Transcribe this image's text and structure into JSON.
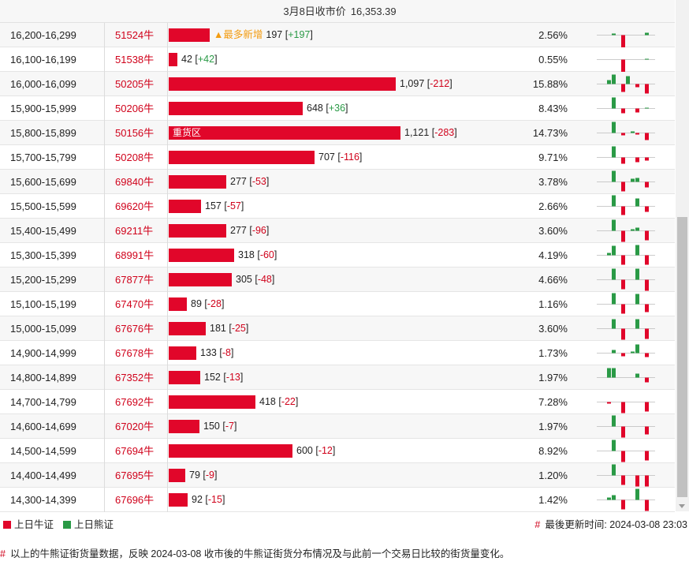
{
  "header": {
    "date_label": "3月8日收市价",
    "price": "16,353.39"
  },
  "colors": {
    "bull": "#e1062a",
    "bear": "#2a9a46",
    "code": "#d0021b"
  },
  "rows": [
    {
      "range": "16,200-16,299",
      "code": "51524牛",
      "bar_value": 197,
      "value": "197",
      "delta": "+197",
      "pct": "2.56%",
      "tag": "▲最多新增",
      "label": "",
      "spark": [
        0,
        0,
        0,
        2,
        0,
        -16,
        0,
        0,
        0,
        0,
        3,
        0
      ]
    },
    {
      "range": "16,100-16,199",
      "code": "51538牛",
      "bar_value": 42,
      "value": "42",
      "delta": "+42",
      "pct": "0.55%",
      "tag": "",
      "label": "",
      "spark": [
        0,
        0,
        0,
        0,
        0,
        -16,
        0,
        0,
        0,
        0,
        1,
        0
      ]
    },
    {
      "range": "16,000-16,099",
      "code": "50205牛",
      "bar_value": 1097,
      "value": "1,097",
      "delta": "-212",
      "pct": "15.88%",
      "tag": "",
      "label": "",
      "spark": [
        0,
        0,
        5,
        12,
        0,
        -10,
        10,
        0,
        -4,
        0,
        -12,
        0
      ]
    },
    {
      "range": "15,900-15,999",
      "code": "50206牛",
      "bar_value": 648,
      "value": "648",
      "delta": "+36",
      "pct": "8.43%",
      "tag": "",
      "label": "",
      "spark": [
        0,
        0,
        0,
        14,
        0,
        -6,
        0,
        0,
        -5,
        0,
        1,
        0
      ]
    },
    {
      "range": "15,800-15,899",
      "code": "50156牛",
      "bar_value": 1121,
      "value": "1,121",
      "delta": "-283",
      "pct": "14.73%",
      "tag": "",
      "label": "重货区",
      "spark": [
        0,
        0,
        0,
        14,
        0,
        -3,
        0,
        2,
        -2,
        0,
        -9,
        0
      ]
    },
    {
      "range": "15,700-15,799",
      "code": "50208牛",
      "bar_value": 707,
      "value": "707",
      "delta": "-116",
      "pct": "9.71%",
      "tag": "",
      "label": "",
      "spark": [
        0,
        0,
        0,
        14,
        0,
        -8,
        0,
        0,
        -6,
        0,
        -4,
        0
      ]
    },
    {
      "range": "15,600-15,699",
      "code": "69840牛",
      "bar_value": 277,
      "value": "277",
      "delta": "-53",
      "pct": "3.78%",
      "tag": "",
      "label": "",
      "spark": [
        0,
        0,
        0,
        14,
        0,
        -12,
        0,
        4,
        5,
        0,
        -7,
        0
      ]
    },
    {
      "range": "15,500-15,599",
      "code": "69620牛",
      "bar_value": 157,
      "value": "157",
      "delta": "-57",
      "pct": "2.66%",
      "tag": "",
      "label": "",
      "spark": [
        0,
        0,
        0,
        14,
        0,
        -11,
        0,
        0,
        10,
        0,
        -7,
        0
      ]
    },
    {
      "range": "15,400-15,499",
      "code": "69211牛",
      "bar_value": 277,
      "value": "277",
      "delta": "-96",
      "pct": "3.60%",
      "tag": "",
      "label": "",
      "spark": [
        0,
        0,
        0,
        14,
        0,
        -14,
        0,
        2,
        4,
        0,
        -12,
        0
      ]
    },
    {
      "range": "15,300-15,399",
      "code": "68991牛",
      "bar_value": 318,
      "value": "318",
      "delta": "-60",
      "pct": "4.19%",
      "tag": "",
      "label": "",
      "spark": [
        0,
        0,
        3,
        12,
        0,
        -12,
        0,
        0,
        13,
        0,
        -12,
        0
      ]
    },
    {
      "range": "15,200-15,299",
      "code": "67877牛",
      "bar_value": 305,
      "value": "305",
      "delta": "-48",
      "pct": "4.66%",
      "tag": "",
      "label": "",
      "spark": [
        0,
        0,
        0,
        14,
        0,
        -12,
        0,
        0,
        14,
        0,
        -14,
        0
      ]
    },
    {
      "range": "15,100-15,199",
      "code": "67470牛",
      "bar_value": 89,
      "value": "89",
      "delta": "-28",
      "pct": "1.16%",
      "tag": "",
      "label": "",
      "spark": [
        0,
        0,
        0,
        14,
        0,
        -12,
        0,
        0,
        13,
        0,
        -10,
        0
      ]
    },
    {
      "range": "15,000-15,099",
      "code": "67676牛",
      "bar_value": 181,
      "value": "181",
      "delta": "-25",
      "pct": "3.60%",
      "tag": "",
      "label": "",
      "spark": [
        0,
        0,
        0,
        12,
        0,
        -14,
        0,
        0,
        12,
        0,
        -13,
        0
      ]
    },
    {
      "range": "14,900-14,999",
      "code": "67678牛",
      "bar_value": 133,
      "value": "133",
      "delta": "-8",
      "pct": "1.73%",
      "tag": "",
      "label": "",
      "spark": [
        0,
        0,
        0,
        4,
        0,
        -4,
        0,
        2,
        11,
        0,
        -5,
        0
      ]
    },
    {
      "range": "14,800-14,899",
      "code": "67352牛",
      "bar_value": 152,
      "value": "152",
      "delta": "-13",
      "pct": "1.97%",
      "tag": "",
      "label": "",
      "spark": [
        0,
        0,
        12,
        12,
        0,
        0,
        0,
        0,
        5,
        0,
        -6,
        0
      ]
    },
    {
      "range": "14,700-14,799",
      "code": "67692牛",
      "bar_value": 418,
      "value": "418",
      "delta": "-22",
      "pct": "7.28%",
      "tag": "",
      "label": "",
      "spark": [
        0,
        0,
        -2,
        0,
        0,
        -14,
        0,
        0,
        0,
        0,
        -12,
        0
      ]
    },
    {
      "range": "14,600-14,699",
      "code": "67020牛",
      "bar_value": 150,
      "value": "150",
      "delta": "-7",
      "pct": "1.97%",
      "tag": "",
      "label": "",
      "spark": [
        0,
        0,
        0,
        14,
        0,
        -14,
        0,
        0,
        0,
        0,
        -10,
        0
      ]
    },
    {
      "range": "14,500-14,599",
      "code": "67694牛",
      "bar_value": 600,
      "value": "600",
      "delta": "-12",
      "pct": "8.92%",
      "tag": "",
      "label": "",
      "spark": [
        0,
        0,
        0,
        14,
        0,
        -14,
        0,
        0,
        0,
        0,
        -12,
        0
      ]
    },
    {
      "range": "14,400-14,499",
      "code": "67695牛",
      "bar_value": 79,
      "value": "79",
      "delta": "-9",
      "pct": "1.20%",
      "tag": "",
      "label": "",
      "spark": [
        0,
        0,
        0,
        14,
        0,
        -12,
        0,
        0,
        -14,
        0,
        -14,
        0
      ]
    },
    {
      "range": "14,300-14,399",
      "code": "67696牛",
      "bar_value": 92,
      "value": "92",
      "delta": "-15",
      "pct": "1.42%",
      "tag": "",
      "label": "",
      "spark": [
        0,
        0,
        3,
        6,
        0,
        -12,
        0,
        0,
        14,
        0,
        -14,
        0
      ]
    }
  ],
  "legend": {
    "bull_label": "上日牛证",
    "bear_label": "上日熊证",
    "update_label": "最後更新时间: 2024-03-08 23:03"
  },
  "note": "以上的牛熊证街货量数据，反映 2024-03-08 收市後的牛熊证街货分布情况及与此前一个交易日比较的街货量变化。",
  "hash_mark": "#"
}
